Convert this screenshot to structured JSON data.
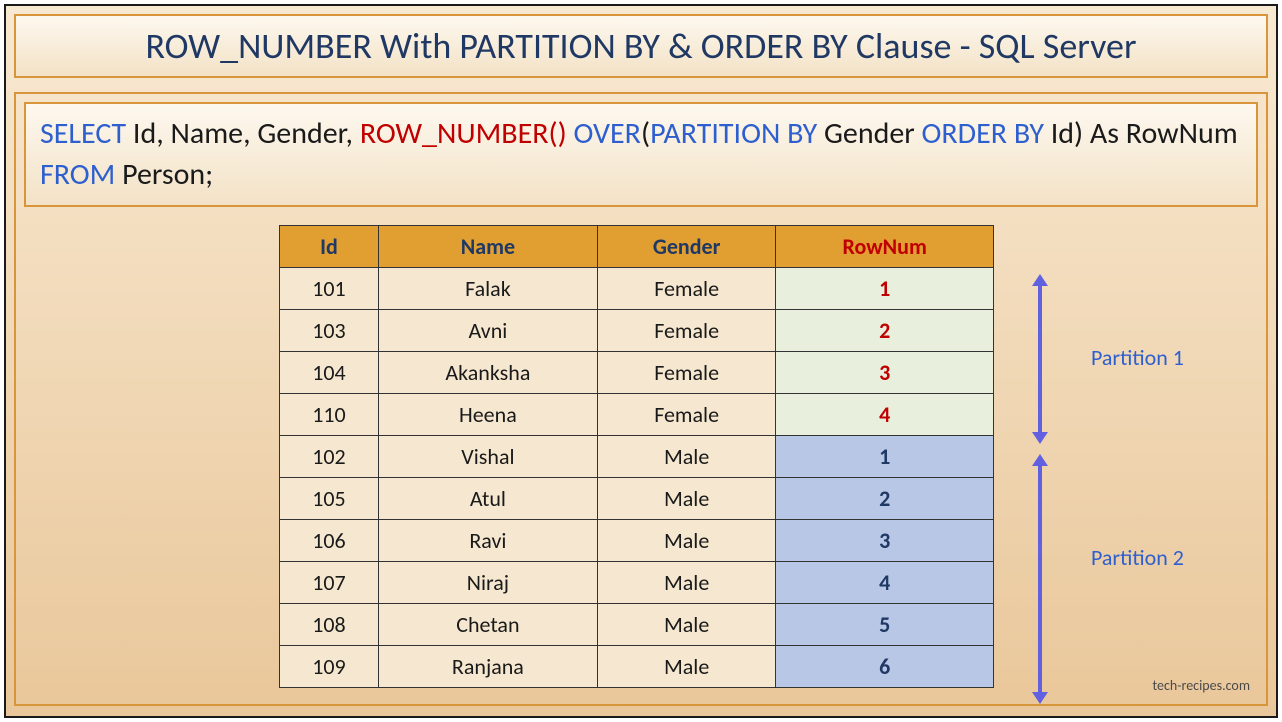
{
  "title": "ROW_NUMBER With PARTITION BY & ORDER BY Clause - SQL Server",
  "sql": {
    "select": "SELECT",
    "cols": " Id, Name, Gender, ",
    "rownum_fn": "ROW_NUMBER()",
    "over": " OVER",
    "paren_open": "(",
    "partition_by": "PARTITION BY",
    "partition_col": " Gender ",
    "order_by": "ORDER BY",
    "order_col": " Id) As RowNum ",
    "from": "FROM",
    "table": " Person;"
  },
  "table": {
    "columns": [
      "Id",
      "Name",
      "Gender",
      "RowNum"
    ],
    "header_bg": "#e19f31",
    "header_color": "#203864",
    "rownum_header_color": "#c00000",
    "partition1_rownum_bg": "#e9efdd",
    "partition2_rownum_bg": "#b7c7e5",
    "cell_bg": "#f6e8d0",
    "border_color": "#333333",
    "font_size": 22,
    "rows": [
      {
        "id": "101",
        "name": "Falak",
        "gender": "Female",
        "rownum": "1",
        "partition": 1
      },
      {
        "id": "103",
        "name": "Avni",
        "gender": "Female",
        "rownum": "2",
        "partition": 1
      },
      {
        "id": "104",
        "name": "Akanksha",
        "gender": "Female",
        "rownum": "3",
        "partition": 1
      },
      {
        "id": "110",
        "name": "Heena",
        "gender": "Female",
        "rownum": "4",
        "partition": 1
      },
      {
        "id": "102",
        "name": "Vishal",
        "gender": "Male",
        "rownum": "1",
        "partition": 2
      },
      {
        "id": "105",
        "name": "Atul",
        "gender": "Male",
        "rownum": "2",
        "partition": 2
      },
      {
        "id": "106",
        "name": "Ravi",
        "gender": "Male",
        "rownum": "3",
        "partition": 2
      },
      {
        "id": "107",
        "name": "Niraj",
        "gender": "Male",
        "rownum": "4",
        "partition": 2
      },
      {
        "id": "108",
        "name": "Chetan",
        "gender": "Male",
        "rownum": "5",
        "partition": 2
      },
      {
        "id": "109",
        "name": "Ranjana",
        "gender": "Male",
        "rownum": "6",
        "partition": 2
      }
    ]
  },
  "labels": {
    "partition1": "Partition 1",
    "partition2": "Partition 2"
  },
  "arrows": {
    "color": "#6060e0",
    "width": 4
  },
  "colors": {
    "bg_gradient_start": "#f8e9d2",
    "bg_gradient_end": "#e9c79a",
    "box_border": "#d9953c",
    "title_color": "#203864",
    "kw_blue": "#2e5fce",
    "kw_red": "#c00000",
    "kw_black": "#1a1a1a"
  },
  "credit": "tech-recipes.com"
}
